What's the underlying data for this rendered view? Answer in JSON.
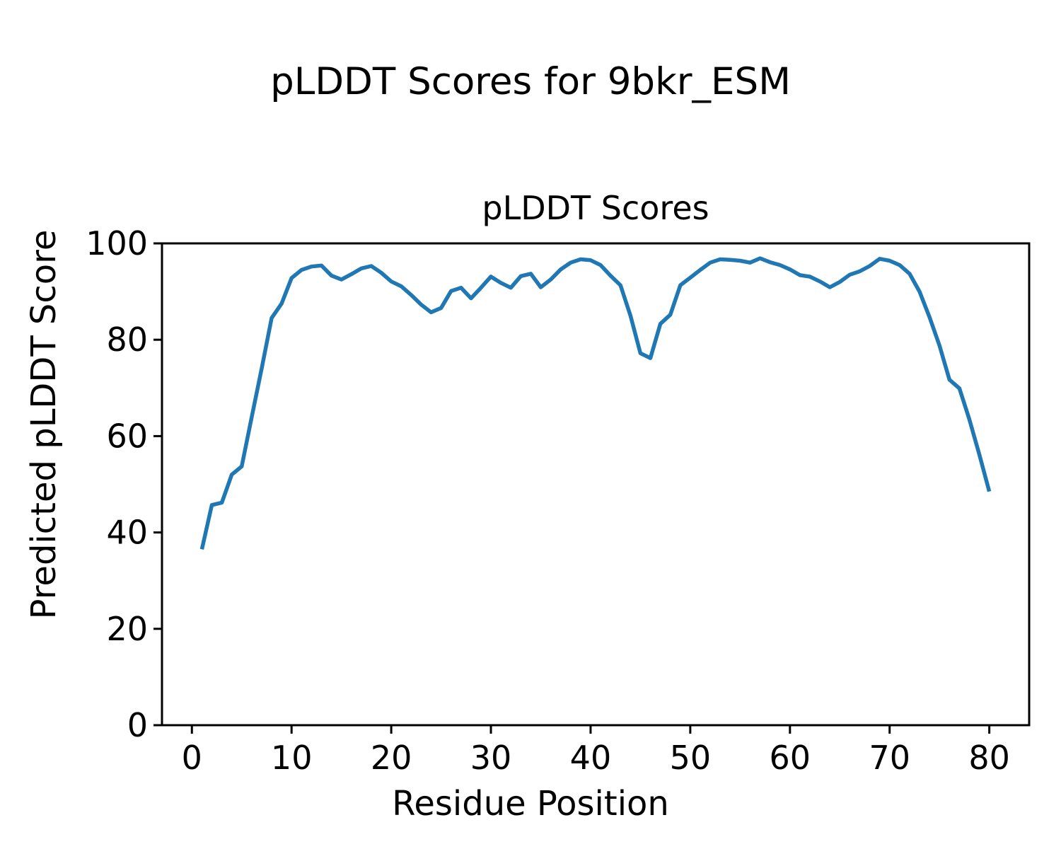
{
  "figure": {
    "suptitle": "pLDDT Scores for 9bkr_ESM",
    "background_color": "#ffffff",
    "spine_color": "#000000"
  },
  "chart_data": {
    "type": "line",
    "title": "pLDDT Scores",
    "xlabel": "Residue Position",
    "ylabel": "Predicted pLDDT Score",
    "line_color": "#1f77b4",
    "grid": false,
    "legend_position": "none",
    "xlim": [
      -3,
      84
    ],
    "ylim": [
      0,
      100
    ],
    "xticks": [
      0,
      10,
      20,
      30,
      40,
      50,
      60,
      70,
      80
    ],
    "yticks": [
      0,
      20,
      40,
      60,
      80,
      100
    ],
    "x": [
      1,
      2,
      3,
      4,
      5,
      6,
      7,
      8,
      9,
      10,
      11,
      12,
      13,
      14,
      15,
      16,
      17,
      18,
      19,
      20,
      21,
      22,
      23,
      24,
      25,
      26,
      27,
      28,
      29,
      30,
      31,
      32,
      33,
      34,
      35,
      36,
      37,
      38,
      39,
      40,
      41,
      42,
      43,
      44,
      45,
      46,
      47,
      48,
      49,
      50,
      51,
      52,
      53,
      54,
      55,
      56,
      57,
      58,
      59,
      60,
      61,
      62,
      63,
      64,
      65,
      66,
      67,
      68,
      69,
      70,
      71,
      72,
      73,
      74,
      75,
      76,
      77,
      78,
      79,
      80
    ],
    "y": [
      36.5,
      45.7,
      46.2,
      52.0,
      53.7,
      63.9,
      74.0,
      84.5,
      87.5,
      92.8,
      94.5,
      95.2,
      95.4,
      93.3,
      92.5,
      93.6,
      94.8,
      95.3,
      93.9,
      92.1,
      91.1,
      89.3,
      87.3,
      85.7,
      86.6,
      90.1,
      90.8,
      88.6,
      90.8,
      93.1,
      91.8,
      90.8,
      93.2,
      93.7,
      90.9,
      92.5,
      94.6,
      96.0,
      96.7,
      96.5,
      95.5,
      93.3,
      91.3,
      85.0,
      77.2,
      76.2,
      83.3,
      85.2,
      91.3,
      92.9,
      94.5,
      96.0,
      96.7,
      96.6,
      96.4,
      96.0,
      96.9,
      96.1,
      95.5,
      94.6,
      93.4,
      93.1,
      92.1,
      90.9,
      92.0,
      93.5,
      94.2,
      95.3,
      96.8,
      96.4,
      95.5,
      93.7,
      90.0,
      84.7,
      78.8,
      71.7,
      69.9,
      63.5,
      56.2,
      48.5
    ]
  }
}
